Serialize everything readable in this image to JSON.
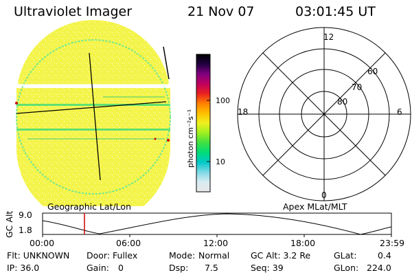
{
  "header": {
    "instrument": "Ultraviolet Imager",
    "date": "21 Nov 07",
    "time": "03:01:45 UT"
  },
  "colorbar": {
    "unit_label": "photon cm⁻²s⁻¹",
    "ticks": [
      "100",
      "10"
    ],
    "stops": [
      "#e8e8e8",
      "#d9ecf2",
      "#7fd9e6",
      "#00c8c8",
      "#00dc78",
      "#40e040",
      "#a0f020",
      "#f0f020",
      "#ffc000",
      "#ff8000",
      "#e82020",
      "#c00060",
      "#800080",
      "#200040",
      "#000000"
    ]
  },
  "image_panel": {
    "label": "Geographic Lat/Lon",
    "disk_color": "#f4f44a",
    "edge_color": "#70e890"
  },
  "polar_grid": {
    "label": "Apex MLat/MLT",
    "mlt_labels": [
      "12",
      "18",
      "6",
      "0"
    ],
    "lat_labels": [
      "60",
      "70",
      "80"
    ]
  },
  "timeline": {
    "y_label": "GC Alt",
    "y_ticks": [
      "9.0",
      "1.8"
    ],
    "x_ticks": [
      "00:00",
      "06:00",
      "12:00",
      "18:00",
      "23:59"
    ],
    "marker_color": "#cc0000"
  },
  "footer": {
    "flt": "Flt: UNKNOWN",
    "door": "Door: Fullex",
    "mode_label": "Mode:",
    "mode_value": "Normal",
    "gc_alt": "GC Alt: 3.2 Re",
    "glat_label": "GLat:",
    "glat_value": "0.4",
    "ip": "IP: 36.0",
    "gain_label": "Gain:",
    "gain_value": "0",
    "dsp_label": "Dsp:",
    "dsp_value": "7.5",
    "seq": "Seq: 39",
    "glon_label": "GLon:",
    "glon_value": "224.0"
  }
}
